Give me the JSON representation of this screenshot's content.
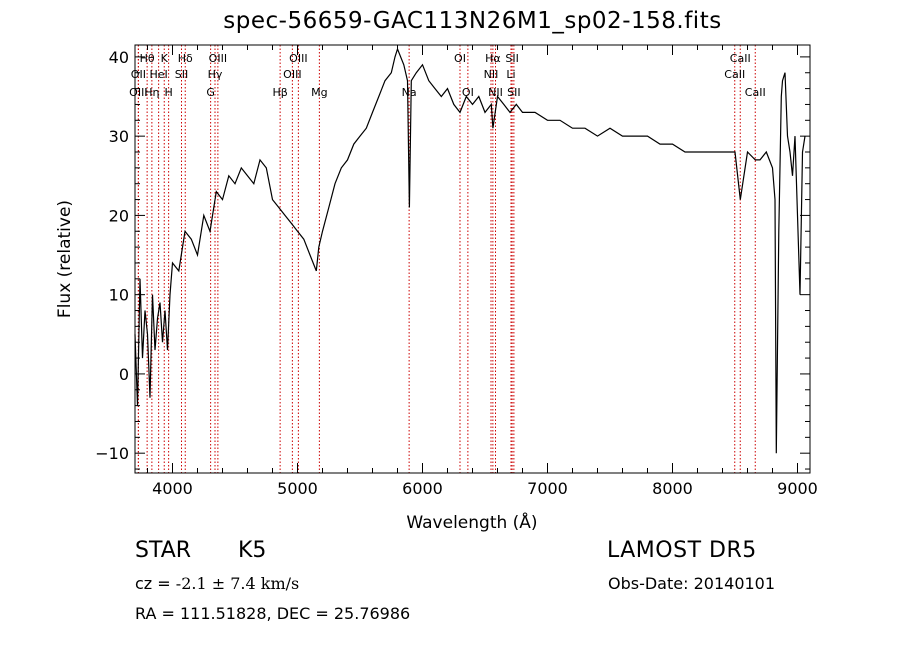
{
  "title": "spec-56659-GAC113N26M1_sp02-158.fits",
  "object": {
    "class": "STAR",
    "subclass": "K5"
  },
  "survey": "LAMOST DR5",
  "cz": {
    "label": "cz =",
    "value": "-2.1",
    "pm": "±",
    "error": "7.4",
    "unit": "km/s"
  },
  "obs_date": {
    "label": "Obs-Date:",
    "value": "20140101"
  },
  "radec": "RA = 111.51828, DEC =  25.76986",
  "chart_data": {
    "type": "line",
    "xlabel": "Wavelength (Å)",
    "ylabel": "Flux (relative)",
    "xlim": [
      3700,
      9100
    ],
    "ylim": [
      -12.5,
      41.5
    ],
    "xticks": [
      4000,
      5000,
      6000,
      7000,
      8000,
      9000
    ],
    "yticks": [
      -10,
      0,
      10,
      20,
      30,
      40
    ],
    "line_color": "#000000",
    "marker_color": "#cc0000",
    "series": [
      {
        "x": [
          3700,
          3720,
          3740,
          3760,
          3780,
          3800,
          3820,
          3840,
          3860,
          3880,
          3900,
          3920,
          3940,
          3960,
          3980,
          4000,
          4050,
          4100,
          4150,
          4200,
          4250,
          4300,
          4350,
          4400,
          4450,
          4500,
          4550,
          4600,
          4650,
          4700,
          4750,
          4800,
          4850,
          4900,
          4950,
          5000,
          5050,
          5100,
          5150,
          5170,
          5200,
          5250,
          5300,
          5350,
          5400,
          5450,
          5500,
          5550,
          5600,
          5650,
          5700,
          5750,
          5780,
          5800,
          5850,
          5880,
          5895,
          5910,
          5950,
          6000,
          6050,
          6100,
          6150,
          6200,
          6250,
          6300,
          6350,
          6400,
          6450,
          6500,
          6550,
          6563,
          6600,
          6650,
          6700,
          6750,
          6800,
          6900,
          7000,
          7100,
          7200,
          7300,
          7400,
          7500,
          7600,
          7700,
          7800,
          7900,
          8000,
          8100,
          8200,
          8300,
          8400,
          8500,
          8542,
          8600,
          8662,
          8700,
          8750,
          8800,
          8820,
          8830,
          8850,
          8870,
          8880,
          8900,
          8920,
          8940,
          8960,
          8980,
          9000,
          9020,
          9040,
          9060
        ],
        "y": [
          5,
          -4,
          12,
          2,
          8,
          5,
          -3,
          10,
          3,
          7,
          9,
          4,
          8,
          3,
          10,
          14,
          13,
          18,
          17,
          15,
          20,
          18,
          23,
          22,
          25,
          24,
          26,
          25,
          24,
          27,
          26,
          22,
          21,
          20,
          19,
          18,
          17,
          15,
          13,
          16,
          18,
          21,
          24,
          26,
          27,
          29,
          30,
          31,
          33,
          35,
          37,
          38,
          40,
          41,
          39,
          37,
          21,
          37,
          38,
          39,
          37,
          36,
          35,
          36,
          34,
          33,
          35,
          34,
          35,
          33,
          34,
          31,
          35,
          34,
          33,
          34,
          33,
          33,
          32,
          32,
          31,
          31,
          30,
          31,
          30,
          30,
          30,
          29,
          29,
          28,
          28,
          28,
          28,
          28,
          22,
          28,
          27,
          27,
          28,
          26,
          22,
          -10,
          18,
          35,
          37,
          38,
          30,
          28,
          25,
          30,
          20,
          10,
          28,
          30
        ]
      }
    ],
    "lines": [
      {
        "label": "Hθ",
        "wave": 3797,
        "row": 0
      },
      {
        "label": "K",
        "wave": 3934,
        "row": 0
      },
      {
        "label": "Hδ",
        "wave": 4102,
        "row": 0
      },
      {
        "label": "OIII",
        "wave": 4363,
        "row": 0
      },
      {
        "label": "OIII",
        "wave": 5007,
        "row": 0
      },
      {
        "label": "OI",
        "wave": 6300,
        "row": 0
      },
      {
        "label": "Hα",
        "wave": 6563,
        "row": 0
      },
      {
        "label": "SII",
        "wave": 6717,
        "row": 0
      },
      {
        "label": "CaII",
        "wave": 8542,
        "row": 0
      },
      {
        "label": "OII",
        "wave": 3727,
        "row": 1
      },
      {
        "label": "HeI",
        "wave": 3889,
        "row": 1
      },
      {
        "label": "SII",
        "wave": 4072,
        "row": 1
      },
      {
        "label": "Hγ",
        "wave": 4340,
        "row": 1
      },
      {
        "label": "OIII",
        "wave": 4959,
        "row": 1
      },
      {
        "label": "NII",
        "wave": 6548,
        "row": 1
      },
      {
        "label": "Li",
        "wave": 6708,
        "row": 1
      },
      {
        "label": "CaII",
        "wave": 8498,
        "row": 1
      },
      {
        "label": "OIII",
        "wave": 3727,
        "row": 2
      },
      {
        "label": "Hη",
        "wave": 3835,
        "row": 2
      },
      {
        "label": "H",
        "wave": 3969,
        "row": 2
      },
      {
        "label": "G",
        "wave": 4305,
        "row": 2
      },
      {
        "label": "Hβ",
        "wave": 4861,
        "row": 2
      },
      {
        "label": "Mg",
        "wave": 5175,
        "row": 2
      },
      {
        "label": "Na",
        "wave": 5893,
        "row": 2
      },
      {
        "label": "OI",
        "wave": 6363,
        "row": 2
      },
      {
        "label": "NII",
        "wave": 6584,
        "row": 2
      },
      {
        "label": "SII",
        "wave": 6731,
        "row": 2
      },
      {
        "label": "CaII",
        "wave": 8662,
        "row": 2
      }
    ]
  }
}
